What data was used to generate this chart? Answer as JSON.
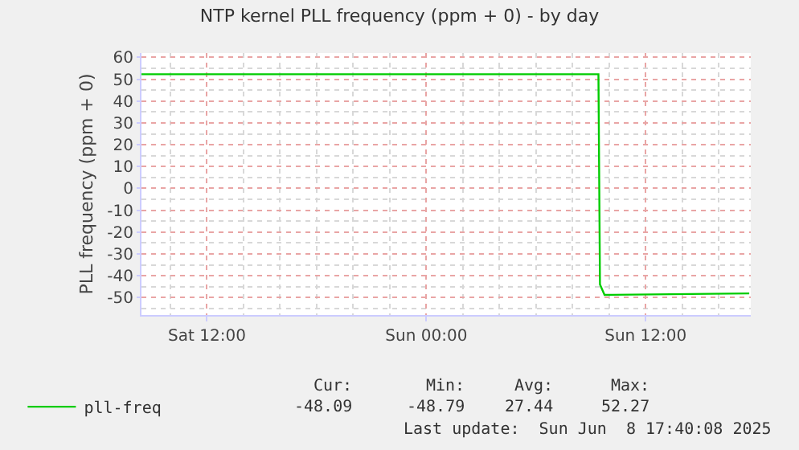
{
  "chart_data": {
    "type": "line",
    "title": "NTP kernel PLL frequency (ppm + 0) - by day",
    "ylabel": "PLL frequency (ppm + 0)",
    "series": [
      {
        "name": "pll-freq",
        "color": "#00cc00",
        "x": [
          "2025-06-07T08:25",
          "2025-06-08T09:25",
          "2025-06-08T09:30",
          "2025-06-08T09:45",
          "2025-06-08T17:40"
        ],
        "values": [
          52.3,
          52.3,
          -44,
          -48.8,
          -48.1
        ]
      }
    ],
    "xlim": [
      "2025-06-07T08:25",
      "2025-06-08T17:45"
    ],
    "xticks": [
      {
        "value": "2025-06-07T12:00",
        "label": "Sat 12:00"
      },
      {
        "value": "2025-06-08T00:00",
        "label": "Sun 00:00"
      },
      {
        "value": "2025-06-08T12:00",
        "label": "Sun 12:00"
      }
    ],
    "ylim": [
      -58,
      62
    ],
    "yticks": [
      -50,
      -40,
      -30,
      -20,
      -10,
      0,
      10,
      20,
      30,
      40,
      50,
      60
    ],
    "grid": true,
    "legend": "bottom left",
    "line_style": "solid",
    "marker": "none",
    "annotations": [
      "Cur:",
      "Min:",
      "Avg:",
      "Max:",
      "-48.09",
      "-48.79",
      "27.44",
      "52.27",
      "Last update:  Sun Jun  8 17:40:08 2025"
    ]
  }
}
